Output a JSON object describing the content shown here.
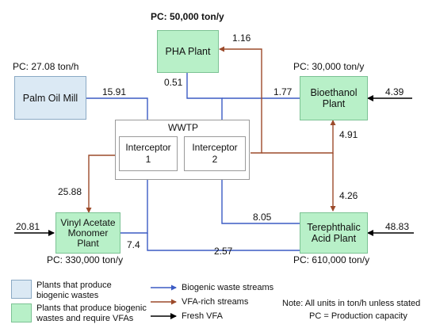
{
  "colors": {
    "biogenic_blue": "#3b5bc4",
    "vfa_brown": "#9c4a2a",
    "fresh_black": "#000000",
    "plant_blue_fill": "#dbe9f4",
    "plant_green_fill": "#b8f0c8"
  },
  "nodes": {
    "pha": {
      "name": "PHA Plant",
      "capacity": "PC: 50,000 ton/y"
    },
    "palm": {
      "name": "Palm Oil Mill",
      "capacity": "PC: 27.08 ton/h"
    },
    "bioethanol": {
      "name_line1": "Bioethanol",
      "name_line2": "Plant",
      "capacity": "PC: 30,000 ton/y"
    },
    "vam": {
      "name_line1": "Vinyl Acetate",
      "name_line2": "Monomer",
      "name_line3": "Plant",
      "capacity": "PC: 330,000 ton/y"
    },
    "tpa": {
      "name_line1": "Terephthalic",
      "name_line2": "Acid Plant",
      "capacity": "PC: 610,000 ton/y"
    },
    "wwtp": {
      "title": "WWTP",
      "interceptor1_line1": "Interceptor",
      "interceptor1_line2": "1",
      "interceptor2_line1": "Interceptor",
      "interceptor2_line2": "2"
    }
  },
  "flows": {
    "pha_in": "1.16",
    "pha_out": "0.51",
    "palm_to_i1": "15.91",
    "bio_to_i2": "1.77",
    "fresh_bio": "4.39",
    "bio_tpa_upper": "4.91",
    "bio_tpa_lower": "4.26",
    "i1_to_vam": "25.88",
    "fresh_vam": "20.81",
    "vam_to_i1": "7.4",
    "tpa_to_i2": "8.05",
    "tpa_to_i1": "2.57",
    "fresh_tpa": "48.83"
  },
  "legend": {
    "blue_box_line1": "Plants that produce",
    "blue_box_line2": "biogenic wastes",
    "green_box_line1": "Plants that produce biogenic",
    "green_box_line2": "wastes and require VFAs",
    "biogenic_label": "Biogenic waste streams",
    "vfa_label": "VFA-rich streams",
    "fresh_label": "Fresh VFA",
    "note_line1": "Note:  All units in ton/h unless stated",
    "note_line2": "PC = Production capacity"
  }
}
